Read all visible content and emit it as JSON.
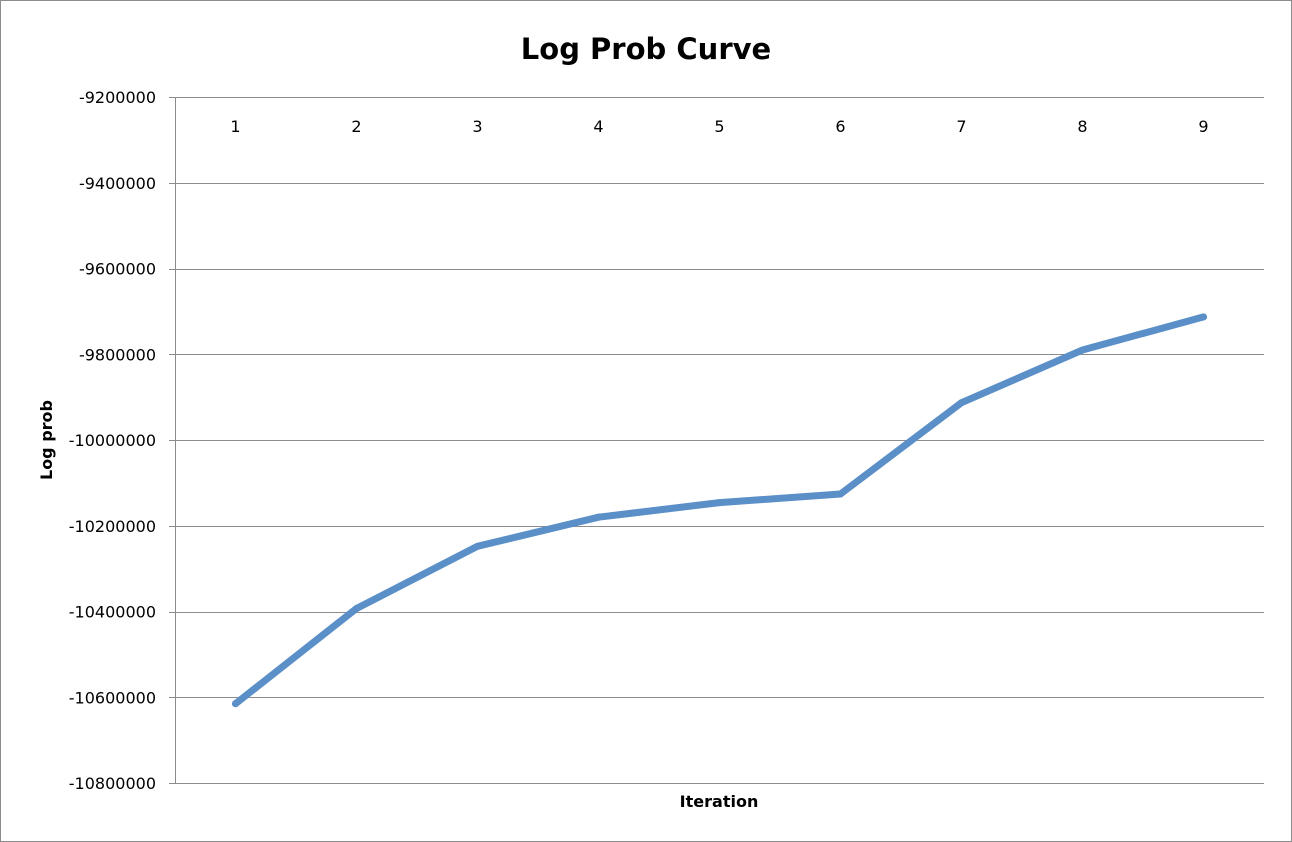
{
  "chart_data": {
    "type": "line",
    "title": "Log Prob Curve",
    "xlabel": "Iteration",
    "ylabel": "Log prob",
    "categories": [
      "1",
      "2",
      "3",
      "4",
      "5",
      "6",
      "7",
      "8",
      "9"
    ],
    "series": [
      {
        "values": [
          -10615000,
          -10393000,
          -10248000,
          -10180000,
          -10146000,
          -10126000,
          -9913000,
          -9790000,
          -9713000
        ],
        "color": "#5b8fc8"
      }
    ],
    "ylim": [
      -10800000,
      -9200000
    ],
    "yticks": [
      -9200000,
      -9400000,
      -9600000,
      -9800000,
      -10000000,
      -10200000,
      -10400000,
      -10600000,
      -10800000
    ],
    "x_tick_labels_position": "top",
    "grid": true,
    "legend": "none"
  }
}
